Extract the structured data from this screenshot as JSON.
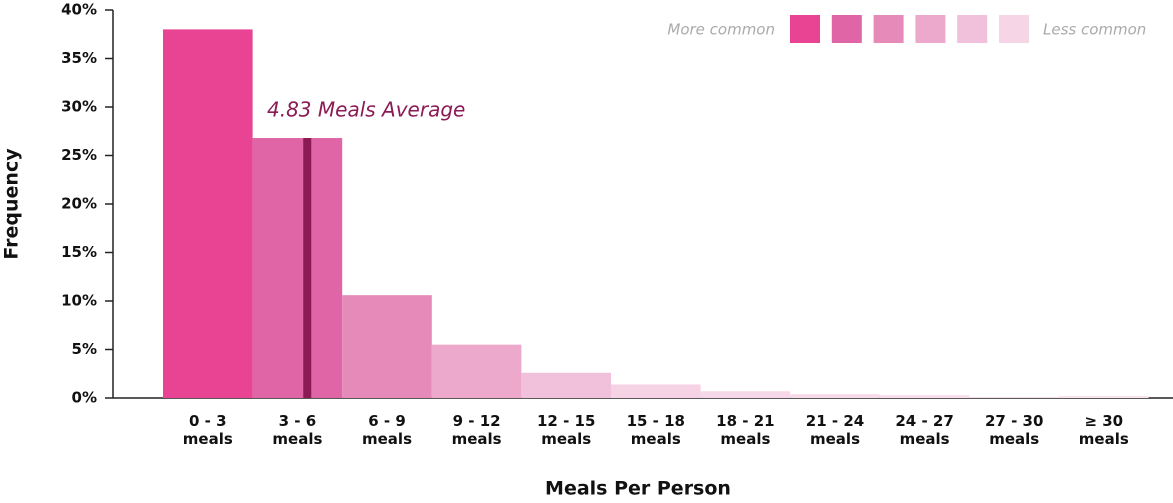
{
  "chart_data": {
    "type": "bar",
    "xlabel": "Meals Per Person",
    "ylabel": "Frequency",
    "categories": [
      "0 - 3 meals",
      "3 - 6 meals",
      "6 - 9 meals",
      "9 - 12 meals",
      "12 - 15 meals",
      "15 - 18 meals",
      "18 - 21 meals",
      "21 - 24 meals",
      "24 - 27 meals",
      "27 - 30 meals",
      "≥ 30 meals"
    ],
    "values": [
      38,
      26.8,
      10.6,
      5.5,
      2.6,
      1.4,
      0.7,
      0.4,
      0.3,
      0.1,
      0.2
    ],
    "colors": [
      "#e94393",
      "#e065a7",
      "#e58ab9",
      "#eda9cc",
      "#f1c1dc",
      "#f5d3e5",
      "#f6d7e7",
      "#f7dbe9",
      "#f8dfeb",
      "#f9e3ed",
      "#f9e3ed"
    ],
    "ylim": [
      0,
      40
    ],
    "yticks": [
      {
        "value": 0,
        "label": "0%"
      },
      {
        "value": 5,
        "label": "5%"
      },
      {
        "value": 10,
        "label": "10%"
      },
      {
        "value": 15,
        "label": "15%"
      },
      {
        "value": 20,
        "label": "20%"
      },
      {
        "value": 25,
        "label": "25%"
      },
      {
        "value": 30,
        "label": "30%"
      },
      {
        "value": 35,
        "label": "35%"
      },
      {
        "value": 40,
        "label": "40%"
      }
    ],
    "average": 4.83,
    "average_label": "4.83 Meals Average",
    "average_color": "#8b1a55",
    "bin_width": 3,
    "legend": {
      "high_label": "More common",
      "low_label": "Less common",
      "colors": [
        "#e94393",
        "#e065a7",
        "#e58ab9",
        "#eda9cc",
        "#f1c1dc",
        "#f5d5e6"
      ]
    }
  }
}
